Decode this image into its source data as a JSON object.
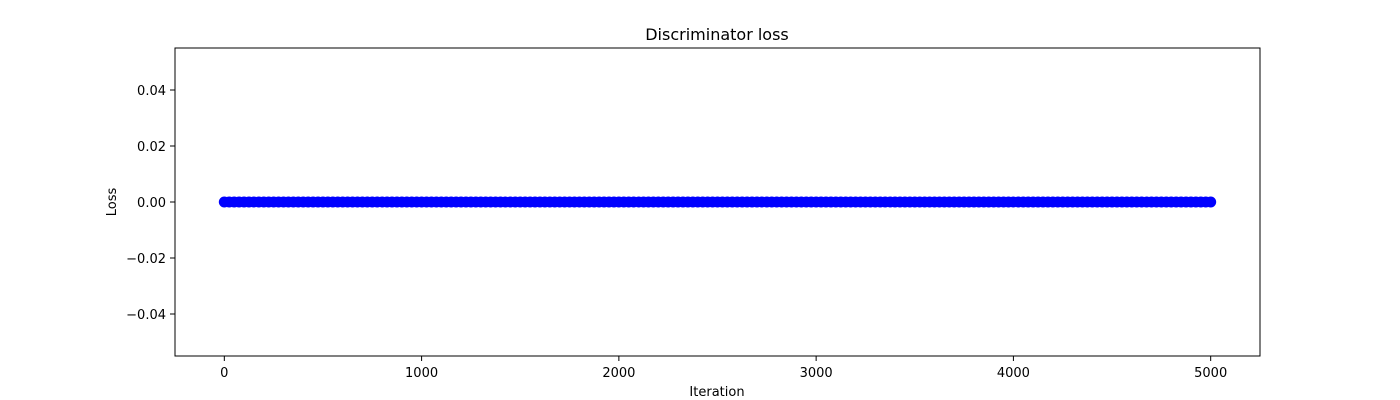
{
  "chart_data": {
    "type": "scatter",
    "title": "Discriminator loss",
    "xlabel": "Iteration",
    "ylabel": "Loss",
    "xlim": [
      -250,
      5250
    ],
    "ylim": [
      -0.055,
      0.055
    ],
    "xticks": [
      0,
      1000,
      2000,
      3000,
      4000,
      5000
    ],
    "xtick_labels": [
      "0",
      "1000",
      "2000",
      "3000",
      "4000",
      "5000"
    ],
    "yticks": [
      -0.04,
      -0.02,
      0.0,
      0.02,
      0.04
    ],
    "ytick_labels": [
      "−0.04",
      "−0.02",
      "0.00",
      "0.02",
      "0.04"
    ],
    "series": [
      {
        "x_start": 0,
        "x_end": 5000,
        "x_step": 25,
        "y_constant": 0.0,
        "color": "#0000ff"
      }
    ],
    "grid": false,
    "legend": false
  }
}
